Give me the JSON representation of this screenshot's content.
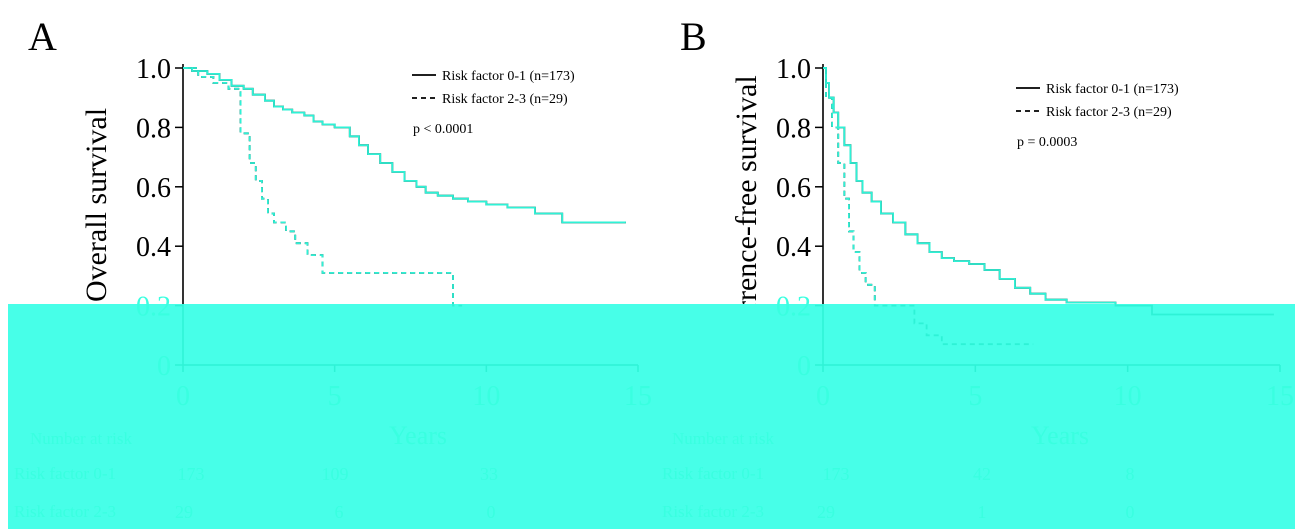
{
  "colors": {
    "ink": "#000000",
    "overlay": "#47ffe8",
    "overlay_text": "#3cffe2"
  },
  "chart_data": [
    {
      "panel": "A",
      "type": "line",
      "ylabel": "Overall survival",
      "xlabel": "Years",
      "xlim": [
        0,
        15
      ],
      "ylim": [
        0,
        1.0
      ],
      "xticks": [
        0,
        5,
        10,
        15
      ],
      "yticks": [
        0,
        0.2,
        0.4,
        0.6,
        0.8,
        1.0
      ],
      "ytick_labels": [
        "0",
        "0.2",
        "0.4",
        "0.6",
        "0.8",
        "1.0"
      ],
      "legend_placement": "top-right",
      "annotation": "p < 0.0001",
      "series": [
        {
          "name": "Risk factor 0-1 (n=173)",
          "style": "solid",
          "x": [
            0,
            0.3,
            0.8,
            1.2,
            1.6,
            2.0,
            2.3,
            2.7,
            3.0,
            3.3,
            3.6,
            4.0,
            4.3,
            4.6,
            5.0,
            5.5,
            5.8,
            6.1,
            6.5,
            6.9,
            7.3,
            7.7,
            8.0,
            8.4,
            8.9,
            9.4,
            10.0,
            10.7,
            11.6,
            12.5,
            13.7,
            14.6
          ],
          "y": [
            1.0,
            0.99,
            0.98,
            0.96,
            0.94,
            0.93,
            0.91,
            0.89,
            0.87,
            0.86,
            0.85,
            0.84,
            0.82,
            0.81,
            0.8,
            0.77,
            0.74,
            0.71,
            0.68,
            0.65,
            0.62,
            0.6,
            0.58,
            0.57,
            0.56,
            0.55,
            0.54,
            0.53,
            0.51,
            0.48,
            0.48,
            0.48
          ]
        },
        {
          "name": "Risk factor 2-3 (n=29)",
          "style": "dashed",
          "x": [
            0,
            0.5,
            1.0,
            1.5,
            1.9,
            2.2,
            2.4,
            2.6,
            2.8,
            3.0,
            3.4,
            3.7,
            4.1,
            4.6,
            5.2,
            8.9,
            9.2
          ],
          "y": [
            1.0,
            0.97,
            0.95,
            0.93,
            0.78,
            0.68,
            0.62,
            0.56,
            0.51,
            0.48,
            0.45,
            0.41,
            0.37,
            0.31,
            0.31,
            0.2,
            0.2
          ]
        }
      ],
      "risk_table": {
        "title": "Number at risk",
        "time_points": [
          0,
          5,
          10
        ],
        "rows": [
          {
            "label": "Risk factor 0-1",
            "values": [
              "173",
              "109",
              "33"
            ]
          },
          {
            "label": "Risk factor 2-3",
            "values": [
              "29",
              "6",
              "0"
            ]
          }
        ]
      }
    },
    {
      "panel": "B",
      "type": "line",
      "ylabel": "Recurrence-free survival",
      "xlabel": "Years",
      "xlim": [
        0,
        15
      ],
      "ylim": [
        0,
        1.0
      ],
      "xticks": [
        0,
        5,
        10,
        15
      ],
      "yticks": [
        0,
        0.2,
        0.4,
        0.6,
        0.8,
        1.0
      ],
      "ytick_labels": [
        "0",
        "0.2",
        "0.4",
        "0.6",
        "0.8",
        "1.0"
      ],
      "legend_placement": "top-right",
      "annotation": "p = 0.0003",
      "series": [
        {
          "name": "Risk factor 0-1 (n=173)",
          "style": "solid",
          "x": [
            0,
            0.1,
            0.2,
            0.35,
            0.5,
            0.7,
            0.9,
            1.1,
            1.3,
            1.6,
            1.9,
            2.3,
            2.7,
            3.1,
            3.5,
            3.9,
            4.3,
            4.8,
            5.3,
            5.8,
            6.3,
            6.8,
            7.3,
            8.0,
            9.0,
            9.6,
            10.8,
            12.0,
            14.8
          ],
          "y": [
            1.0,
            0.95,
            0.9,
            0.85,
            0.8,
            0.74,
            0.68,
            0.62,
            0.58,
            0.55,
            0.51,
            0.48,
            0.44,
            0.41,
            0.38,
            0.36,
            0.35,
            0.34,
            0.32,
            0.29,
            0.26,
            0.24,
            0.22,
            0.21,
            0.21,
            0.2,
            0.17,
            0.17,
            0.17
          ]
        },
        {
          "name": "Risk factor 2-3 (n=29)",
          "style": "dashed",
          "x": [
            0,
            0.1,
            0.3,
            0.5,
            0.7,
            0.85,
            1.0,
            1.2,
            1.4,
            1.7,
            2.4,
            3.0,
            3.4,
            3.9,
            5.0,
            6.9
          ],
          "y": [
            1.0,
            0.9,
            0.8,
            0.68,
            0.56,
            0.45,
            0.38,
            0.31,
            0.27,
            0.2,
            0.2,
            0.14,
            0.1,
            0.07,
            0.07,
            0.07
          ]
        }
      ],
      "risk_table": {
        "title": "Number at risk",
        "time_points": [
          0,
          5,
          10
        ],
        "rows": [
          {
            "label": "Risk factor 0-1",
            "values": [
              "173",
              "42",
              "8"
            ]
          },
          {
            "label": "Risk factor 2-3",
            "values": [
              "29",
              "1",
              "0"
            ]
          }
        ]
      }
    }
  ]
}
